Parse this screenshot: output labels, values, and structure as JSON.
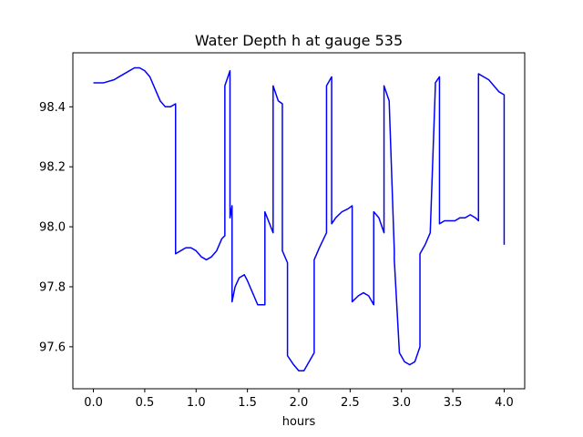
{
  "chart_data": {
    "type": "line",
    "title": "Water Depth h at gauge 535",
    "xlabel": "hours",
    "ylabel": "",
    "xlim": [
      -0.2,
      4.2
    ],
    "ylim": [
      97.46,
      98.58
    ],
    "grid": false,
    "x_ticks": [
      0.0,
      0.5,
      1.0,
      1.5,
      2.0,
      2.5,
      3.0,
      3.5,
      4.0
    ],
    "x_tick_labels": [
      "0.0",
      "0.5",
      "1.0",
      "1.5",
      "2.0",
      "2.5",
      "3.0",
      "3.5",
      "4.0"
    ],
    "y_ticks": [
      97.6,
      97.8,
      98.0,
      98.2,
      98.4
    ],
    "y_tick_labels": [
      "97.6",
      "97.8",
      "98.0",
      "98.2",
      "98.4"
    ],
    "series": [
      {
        "color": "#0000ff",
        "x": [
          0.0,
          0.1,
          0.2,
          0.3,
          0.4,
          0.45,
          0.5,
          0.55,
          0.6,
          0.65,
          0.7,
          0.75,
          0.8,
          0.8,
          0.85,
          0.9,
          0.95,
          1.0,
          1.05,
          1.1,
          1.15,
          1.2,
          1.25,
          1.28,
          1.28,
          1.33,
          1.33,
          1.35,
          1.35,
          1.38,
          1.42,
          1.47,
          1.5,
          1.55,
          1.6,
          1.67,
          1.67,
          1.75,
          1.75,
          1.8,
          1.84,
          1.84,
          1.89,
          1.89,
          1.95,
          2.0,
          2.05,
          2.1,
          2.15,
          2.15,
          2.2,
          2.27,
          2.27,
          2.32,
          2.32,
          2.36,
          2.42,
          2.48,
          2.52,
          2.52,
          2.58,
          2.63,
          2.68,
          2.73,
          2.73,
          2.78,
          2.83,
          2.83,
          2.88,
          2.88,
          2.93,
          2.93,
          2.98,
          3.03,
          3.08,
          3.13,
          3.18,
          3.18,
          3.23,
          3.28,
          3.33,
          3.33,
          3.37,
          3.37,
          3.42,
          3.47,
          3.52,
          3.57,
          3.62,
          3.67,
          3.72,
          3.75,
          3.75,
          3.8,
          3.85,
          3.9,
          3.95,
          4.0,
          4.0
        ],
        "y": [
          98.48,
          98.48,
          98.49,
          98.51,
          98.53,
          98.53,
          98.52,
          98.5,
          98.46,
          98.42,
          98.4,
          98.4,
          98.41,
          97.91,
          97.92,
          97.93,
          97.93,
          97.92,
          97.9,
          97.89,
          97.9,
          97.92,
          97.96,
          97.97,
          98.47,
          98.52,
          98.03,
          98.07,
          97.75,
          97.8,
          97.83,
          97.84,
          97.82,
          97.78,
          97.74,
          97.74,
          98.05,
          97.98,
          98.47,
          98.42,
          98.41,
          97.92,
          97.88,
          97.57,
          97.54,
          97.52,
          97.52,
          97.55,
          97.58,
          97.89,
          97.93,
          97.98,
          98.47,
          98.5,
          98.01,
          98.03,
          98.05,
          98.06,
          98.07,
          97.75,
          97.77,
          97.78,
          97.77,
          97.74,
          98.05,
          98.03,
          97.98,
          98.47,
          98.42,
          98.42,
          97.92,
          97.89,
          97.58,
          97.55,
          97.54,
          97.55,
          97.6,
          97.91,
          97.94,
          97.98,
          98.47,
          98.48,
          98.5,
          98.01,
          98.02,
          98.02,
          98.02,
          98.03,
          98.03,
          98.04,
          98.03,
          98.02,
          98.51,
          98.5,
          98.49,
          98.47,
          98.45,
          98.44,
          97.94
        ]
      }
    ]
  }
}
